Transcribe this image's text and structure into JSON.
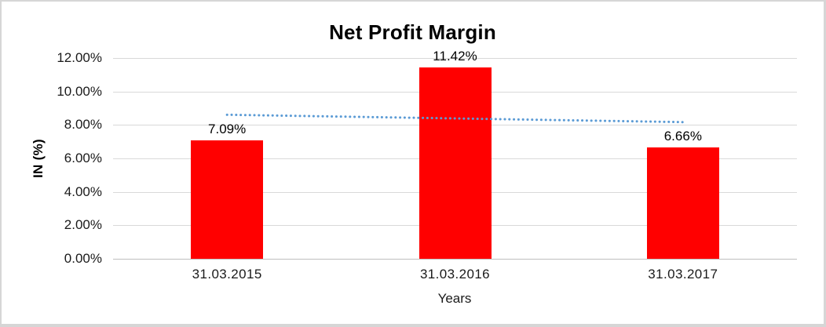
{
  "frame": {
    "border_color": "#d6d6d6",
    "background_color": "#ffffff"
  },
  "chart_data": {
    "type": "bar",
    "title": "Net Profit Margin",
    "xlabel": "Years",
    "ylabel": "IN (%)",
    "categories": [
      "31.03.2015",
      "31.03.2016",
      "31.03.2017"
    ],
    "values": [
      7.09,
      11.42,
      6.66
    ],
    "data_labels": [
      "7.09%",
      "11.42%",
      "6.66%"
    ],
    "ylim": [
      0,
      12
    ],
    "ytick_labels": [
      "0.00%",
      "2.00%",
      "4.00%",
      "6.00%",
      "8.00%",
      "10.00%",
      "12.00%"
    ],
    "grid": true,
    "legend": "none",
    "bar_color": "#ff0000",
    "gridline_color": "#d9d9d9",
    "axis_line_color": "#bfbfbf",
    "text_color": "#000000",
    "trendline": {
      "type": "linear",
      "style": "dotted",
      "color": "#5b9bd5",
      "start_value": 8.61,
      "end_value": 8.17
    }
  }
}
